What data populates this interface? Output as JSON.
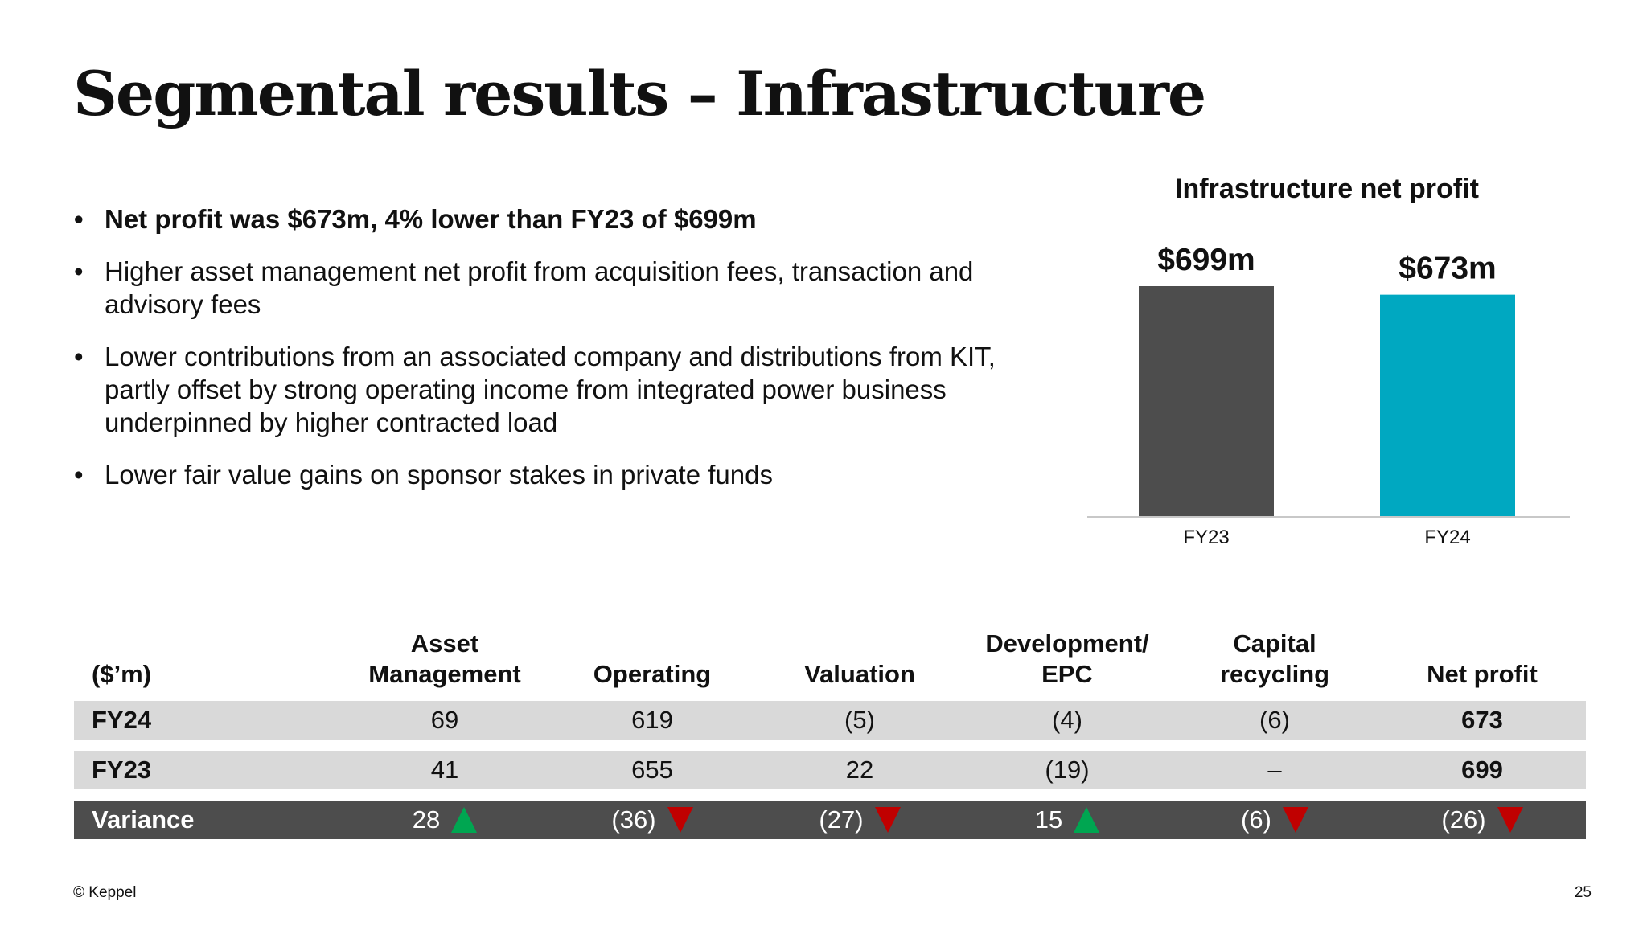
{
  "slide": {
    "title": "Segmental results – Infrastructure",
    "page_number": "25",
    "copyright": "© Keppel"
  },
  "bullets": [
    {
      "text": "Net profit was $673m, 4% lower than FY23 of $699m",
      "bold": true
    },
    {
      "text": "Higher asset management net profit from acquisition fees, transaction and advisory fees",
      "bold": false
    },
    {
      "text": "Lower contributions from an associated company and distributions from KIT, partly offset by strong operating income from integrated power business underpinned by higher contracted load",
      "bold": false
    },
    {
      "text": "Lower fair value gains on sponsor stakes in private funds",
      "bold": false
    }
  ],
  "chart_data": {
    "type": "bar",
    "title": "Infrastructure net profit",
    "categories": [
      "FY23",
      "FY24"
    ],
    "values": [
      699,
      673
    ],
    "data_labels": [
      "$699m",
      "$673m"
    ],
    "colors": [
      "#4d4d4d",
      "#00a8c1"
    ],
    "xlabel": "",
    "ylabel": "",
    "ylim": [
      0,
      699
    ],
    "grid": false
  },
  "table": {
    "header": {
      "unit": "($’m)",
      "asset_management": [
        "Asset",
        "Management"
      ],
      "operating": "Operating",
      "valuation": "Valuation",
      "development": [
        "Development/",
        "EPC"
      ],
      "capital_recycling": [
        "Capital",
        "recycling"
      ],
      "net_profit": "Net profit"
    },
    "rows": {
      "fy24": {
        "label": "FY24",
        "cells": [
          "69",
          "619",
          "(5)",
          "(4)",
          "(6)",
          "673"
        ]
      },
      "fy23": {
        "label": "FY23",
        "cells": [
          "41",
          "655",
          "22",
          "(19)",
          "–",
          "699"
        ]
      },
      "variance": {
        "label": "Variance",
        "cells": [
          "28",
          "(36)",
          "(27)",
          "15",
          "(6)",
          "(26)"
        ],
        "directions": [
          "up",
          "down",
          "down",
          "up",
          "down",
          "down"
        ]
      }
    },
    "colors": {
      "up": "#00a651",
      "down": "#c00000",
      "light_row": "#d9d9d9",
      "dark_row": "#4d4d4d"
    }
  }
}
